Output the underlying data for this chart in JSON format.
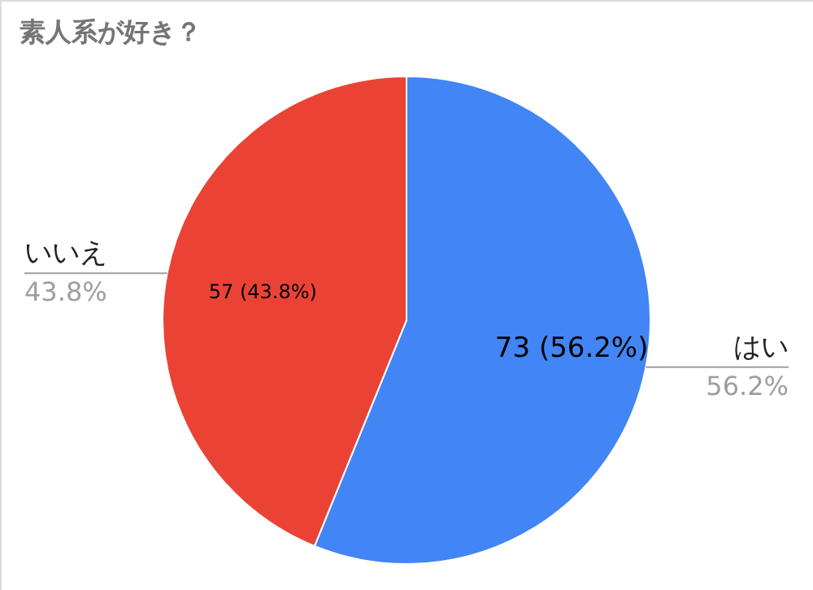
{
  "chart_data": {
    "type": "pie",
    "title": "素人系が好き？",
    "categories": [
      "はい",
      "いいえ"
    ],
    "values": [
      73,
      57
    ],
    "colors": [
      "#4285f4",
      "#ea4335"
    ],
    "value_labels": [
      "73 (56.2%)",
      "57 (43.8%)"
    ],
    "annotations": [
      "56.2%",
      "43.8%"
    ]
  }
}
